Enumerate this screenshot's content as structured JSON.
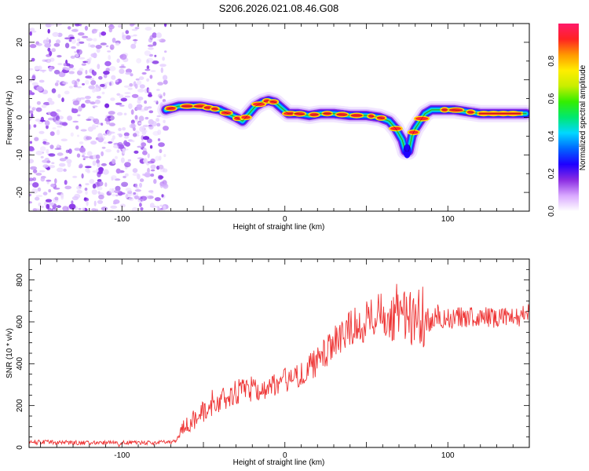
{
  "figure_title": "S206.2026.021.08.46.G08",
  "chart_data": [
    {
      "type": "heatmap",
      "xlabel": "Height of straight line (km)",
      "ylabel": "Frequency (Hz)",
      "xlim": [
        -157,
        150
      ],
      "ylim": [
        -25,
        25
      ],
      "xticks": [
        -100,
        0,
        100
      ],
      "yticks": [
        -20,
        -10,
        0,
        10,
        20
      ],
      "colorbar": {
        "label": "Normalized spectral amplitude",
        "range": [
          0,
          1
        ],
        "ticks": [
          0.0,
          0.2,
          0.4,
          0.6,
          0.8
        ],
        "tick_labels": [
          "0.0",
          "0.2",
          "0.4",
          "0.6",
          "0.8"
        ],
        "stops": [
          "#ffffff",
          "#d9a8ff",
          "#8a2be2",
          "#1e00ff",
          "#0066ff",
          "#00d8ff",
          "#00e870",
          "#33ee00",
          "#c8ee00",
          "#ffee00",
          "#ff9900",
          "#ff2222",
          "#ff1a6a"
        ]
      },
      "noise_region_x": [
        -157,
        -75
      ],
      "doppler_trace": {
        "x": [
          -73,
          -65,
          -58,
          -52,
          -46,
          -40,
          -35,
          -30,
          -26,
          -22,
          -18,
          -14,
          -10,
          -6,
          -2,
          2,
          8,
          15,
          22,
          30,
          40,
          50,
          58,
          64,
          68,
          72,
          74,
          76,
          78,
          80,
          83,
          86,
          90,
          96,
          104,
          112,
          120,
          135,
          148
        ],
        "freq": [
          2,
          3,
          3,
          3,
          2.5,
          2,
          1,
          0,
          -1,
          1,
          3,
          4,
          4.5,
          4,
          2.5,
          1,
          1,
          0.5,
          1,
          1,
          0.5,
          0.5,
          0,
          -1,
          -3,
          -6,
          -9,
          -9,
          -5,
          -3,
          -1,
          1,
          2,
          2,
          2,
          1.5,
          1,
          1,
          1
        ]
      }
    },
    {
      "type": "line",
      "xlabel": "Height of straight line (km)",
      "ylabel": "SNR (10 * v/v)",
      "xlim": [
        -157,
        150
      ],
      "ylim": [
        0,
        900
      ],
      "xticks": [
        -100,
        0,
        100
      ],
      "yticks": [
        0,
        200,
        400,
        600,
        800
      ],
      "series": [
        {
          "name": "SNR",
          "color": "#ee3333",
          "x": [
            -157,
            -120,
            -80,
            -67,
            -63,
            -58,
            -50,
            -40,
            -30,
            -20,
            -10,
            0,
            10,
            20,
            30,
            40,
            50,
            55,
            60,
            65,
            70,
            75,
            80,
            82,
            84,
            86,
            90,
            100,
            110,
            120,
            130,
            140,
            150
          ],
          "mean": [
            25,
            22,
            22,
            28,
            90,
            120,
            170,
            220,
            260,
            280,
            290,
            320,
            350,
            410,
            500,
            570,
            600,
            640,
            660,
            620,
            640,
            630,
            600,
            680,
            420,
            600,
            620,
            620,
            620,
            630,
            620,
            620,
            640
          ],
          "amp": [
            12,
            10,
            10,
            10,
            40,
            45,
            55,
            60,
            65,
            60,
            60,
            60,
            60,
            70,
            80,
            90,
            100,
            110,
            120,
            120,
            130,
            140,
            150,
            120,
            180,
            90,
            70,
            50,
            50,
            50,
            50,
            50,
            50
          ]
        }
      ]
    }
  ]
}
